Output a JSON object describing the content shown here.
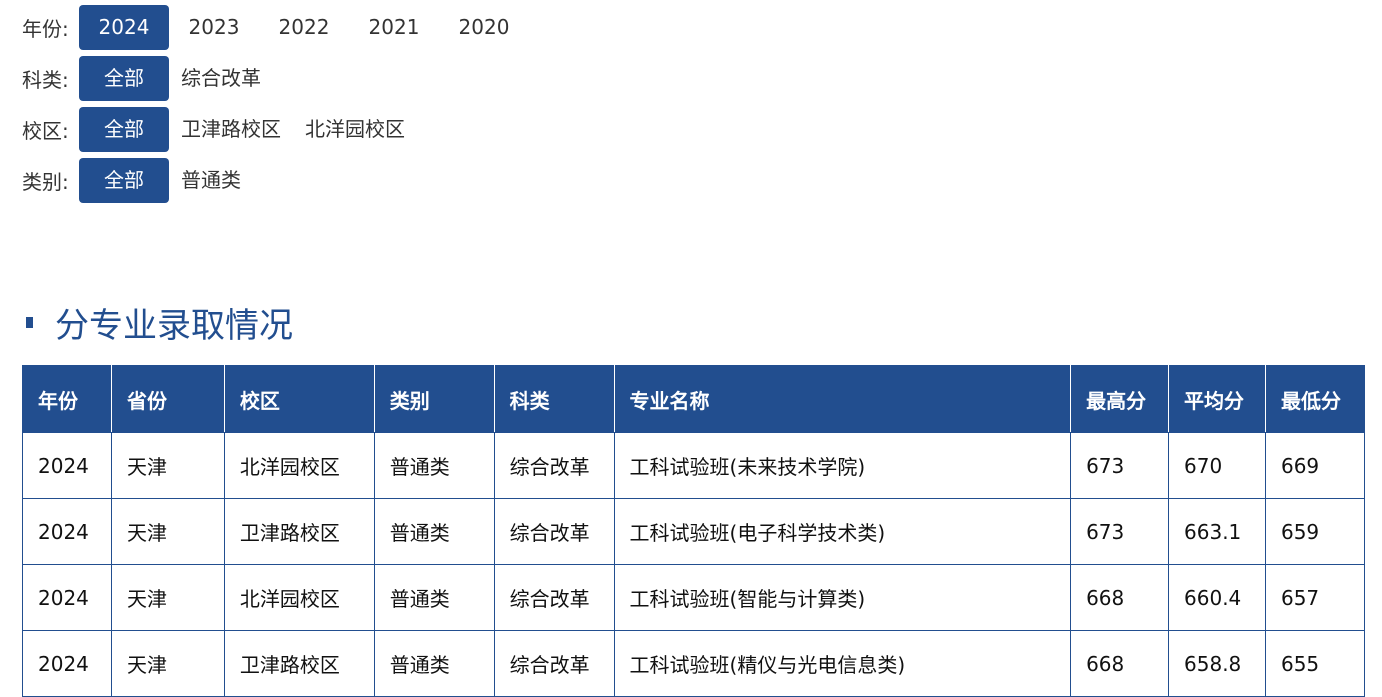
{
  "filters": {
    "year": {
      "label": "年份:",
      "options": [
        "2024",
        "2023",
        "2022",
        "2021",
        "2020"
      ],
      "selected": "2024"
    },
    "subject": {
      "label": "科类:",
      "options": [
        "全部",
        "综合改革"
      ],
      "selected": "全部"
    },
    "campus": {
      "label": "校区:",
      "options": [
        "全部",
        "卫津路校区",
        "北洋园校区"
      ],
      "selected": "全部"
    },
    "type": {
      "label": "类别:",
      "options": [
        "全部",
        "普通类"
      ],
      "selected": "全部"
    }
  },
  "section_title": "分专业录取情况",
  "table": {
    "headers": [
      "年份",
      "省份",
      "校区",
      "类别",
      "科类",
      "专业名称",
      "最高分",
      "平均分",
      "最低分"
    ],
    "rows": [
      [
        "2024",
        "天津",
        "北洋园校区",
        "普通类",
        "综合改革",
        "工科试验班(未来技术学院)",
        "673",
        "670",
        "669"
      ],
      [
        "2024",
        "天津",
        "卫津路校区",
        "普通类",
        "综合改革",
        "工科试验班(电子科学技术类)",
        "673",
        "663.1",
        "659"
      ],
      [
        "2024",
        "天津",
        "北洋园校区",
        "普通类",
        "综合改革",
        "工科试验班(智能与计算类)",
        "668",
        "660.4",
        "657"
      ],
      [
        "2024",
        "天津",
        "卫津路校区",
        "普通类",
        "综合改革",
        "工科试验班(精仪与光电信息类)",
        "668",
        "658.8",
        "655"
      ]
    ]
  },
  "colors": {
    "accent": "#224e8f"
  }
}
